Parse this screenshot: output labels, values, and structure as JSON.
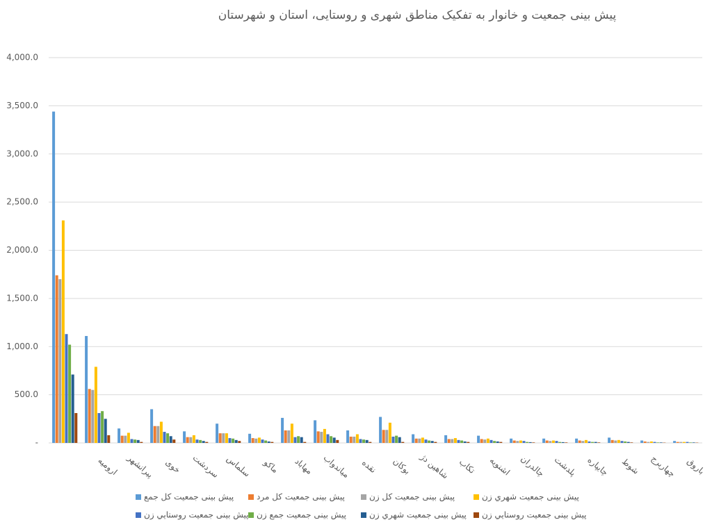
{
  "chart_data": {
    "type": "bar",
    "title": "پیش بینی جمعیت و خانوار به تفکیک مناطق شهری و روستایی، استان و شهرستان",
    "categories": [
      null,
      "ارومیه",
      "پیرانشهر",
      "خوی",
      "سردشت",
      "سلماس",
      "ماکو",
      "مهاباد",
      "میاندواب",
      "نقده",
      "بوکان",
      "شاهین دژ",
      "تکاب",
      "اشنویه",
      "چالدران",
      "پلدشت",
      "چایپاره",
      "شوط",
      "چهاربرج",
      "باروق"
    ],
    "series": [
      {
        "name": "پیش بینی  جمعیت کل جمع",
        "color": "#5b9bd5",
        "values": [
          3440,
          1110,
          150,
          350,
          120,
          200,
          95,
          260,
          235,
          130,
          270,
          90,
          80,
          75,
          45,
          45,
          45,
          55,
          25,
          20
        ]
      },
      {
        "name": "پیش بینی  جمعیت کل مرد",
        "color": "#ed7d31",
        "values": [
          1740,
          560,
          75,
          175,
          60,
          100,
          50,
          130,
          120,
          65,
          135,
          45,
          40,
          40,
          25,
          25,
          25,
          30,
          15,
          10
        ]
      },
      {
        "name": "پیش بینی  جمعیت کل زن",
        "color": "#a5a5a5",
        "values": [
          1700,
          550,
          75,
          175,
          60,
          100,
          45,
          130,
          115,
          65,
          135,
          45,
          40,
          35,
          20,
          20,
          20,
          25,
          10,
          10
        ]
      },
      {
        "name": "پیش بینی  جمعیت شهري زن",
        "color": "#ffc000",
        "values": [
          2310,
          790,
          105,
          220,
          80,
          100,
          55,
          200,
          145,
          90,
          210,
          55,
          50,
          45,
          25,
          25,
          30,
          30,
          15,
          10
        ]
      },
      {
        "name": "پیش بینی  جمعیت روستايي زن",
        "color": "#4472c4",
        "values": [
          1130,
          310,
          40,
          115,
          35,
          50,
          35,
          60,
          90,
          40,
          65,
          35,
          30,
          30,
          20,
          20,
          15,
          20,
          10,
          10
        ]
      },
      {
        "name": "پیش بینی  جمعیت جمع زن",
        "color": "#70ad47",
        "values": [
          1020,
          330,
          35,
          100,
          30,
          45,
          25,
          70,
          70,
          35,
          75,
          25,
          25,
          20,
          10,
          10,
          10,
          15,
          5,
          5
        ]
      },
      {
        "name": "پیش بینی  جمعیت شهري زن",
        "color": "#255e91",
        "values": [
          710,
          250,
          30,
          70,
          20,
          30,
          15,
          60,
          55,
          30,
          60,
          20,
          15,
          15,
          8,
          8,
          10,
          10,
          5,
          5
        ]
      },
      {
        "name": "پیش بینی  جمعیت روستايي زن",
        "color": "#9e480e",
        "values": [
          310,
          80,
          10,
          35,
          10,
          20,
          10,
          10,
          30,
          10,
          10,
          10,
          10,
          10,
          5,
          5,
          5,
          5,
          3,
          3
        ]
      }
    ],
    "ylim": [
      0,
      4000
    ],
    "yticks": [
      {
        "value": 0,
        "label": "-"
      },
      {
        "value": 500,
        "label": "500.0"
      },
      {
        "value": 1000,
        "label": "1,000.0"
      },
      {
        "value": 1500,
        "label": "1,500.0"
      },
      {
        "value": 2000,
        "label": "2,000.0"
      },
      {
        "value": 2500,
        "label": "2,500.0"
      },
      {
        "value": 3000,
        "label": "3,000.0"
      },
      {
        "value": 3500,
        "label": "3,500.0"
      },
      {
        "value": 4000,
        "label": "4,000.0"
      }
    ],
    "grid": true
  }
}
